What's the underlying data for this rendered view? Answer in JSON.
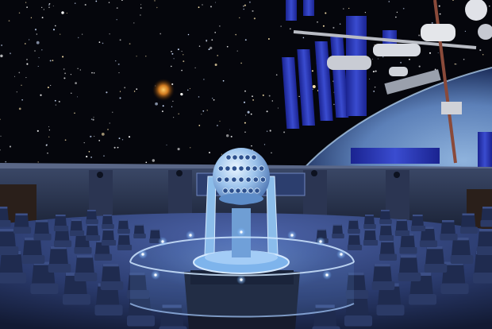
{
  "scene": {
    "subject": "planetarium-interior",
    "colors": {
      "sky": "#05060c",
      "dome_wall": "#2a3550",
      "floor": "#2c3c6e",
      "seat": "#1f2b4f",
      "projector": "#9fc6ef",
      "railing_glow": "#5fa8ff",
      "earth": "#6e95c8",
      "solar_panel": "#2330a8"
    },
    "elements": {
      "star_field": "stars",
      "space_station": "international-space-station",
      "planet": "earth",
      "projector": "star-projector-sphere",
      "seating": "reclining-seats"
    }
  }
}
